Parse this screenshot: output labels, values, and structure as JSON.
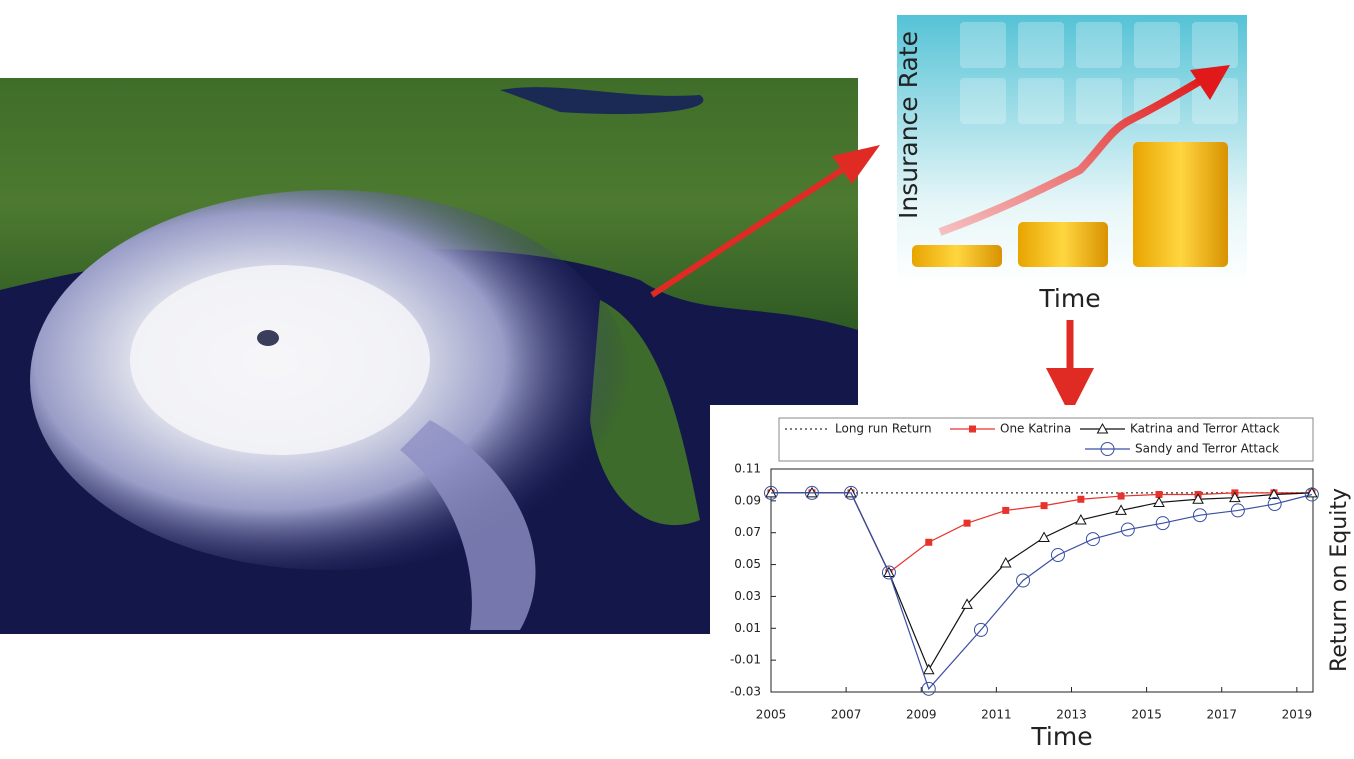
{
  "chart_data": {
    "type": "line",
    "x_label": "Time",
    "y_label": "Return on Equity",
    "xlim": [
      2005,
      2019.43
    ],
    "xticks": [
      2005,
      2007,
      2009,
      2011,
      2013,
      2015,
      2017,
      2019
    ],
    "ylim": [
      -0.03,
      0.11
    ],
    "yticks": [
      0.11,
      0.09,
      0.07,
      0.05,
      0.03,
      0.01,
      -0.01,
      -0.03
    ],
    "series": [
      {
        "name": "Long run Return",
        "color": "#333333",
        "dash": true,
        "marker": "none",
        "x": [
          2005,
          2019.43
        ],
        "values": [
          0.095,
          0.095
        ]
      },
      {
        "name": "One Katrina",
        "color": "#e8322c",
        "marker": "square",
        "x": [
          2005,
          2006.09,
          2007.13,
          2008.14,
          2009.2,
          2010.22,
          2011.25,
          2012.27,
          2013.25,
          2014.32,
          2015.33,
          2016.37,
          2017.35,
          2018.39,
          2019.4
        ],
        "values": [
          0.095,
          0.095,
          0.095,
          0.045,
          0.064,
          0.076,
          0.084,
          0.087,
          0.091,
          0.093,
          0.094,
          0.094,
          0.095,
          0.095,
          0.095
        ]
      },
      {
        "name": "Katrina and Terror Attack",
        "color": "#111111",
        "marker": "triangle",
        "x": [
          2005,
          2006.09,
          2007.13,
          2008.14,
          2009.2,
          2010.22,
          2011.25,
          2012.27,
          2013.25,
          2014.32,
          2015.33,
          2016.37,
          2017.35,
          2018.39,
          2019.4
        ],
        "values": [
          0.095,
          0.095,
          0.095,
          0.045,
          -0.016,
          0.025,
          0.051,
          0.067,
          0.078,
          0.084,
          0.089,
          0.091,
          0.092,
          0.094,
          0.095
        ]
      },
      {
        "name": "Sandy and Terror Attack",
        "color": "#3a4fa3",
        "marker": "circle",
        "x": [
          2005,
          2006.09,
          2007.13,
          2008.14,
          2009.2,
          2010.59,
          2011.71,
          2012.64,
          2013.57,
          2014.5,
          2015.43,
          2016.42,
          2017.43,
          2018.41,
          2019.4
        ],
        "values": [
          0.095,
          0.095,
          0.095,
          0.045,
          -0.028,
          0.009,
          0.04,
          0.056,
          0.066,
          0.072,
          0.076,
          0.081,
          0.084,
          0.088,
          0.094
        ]
      }
    ]
  },
  "illustration": {
    "y_label": "Insurance Rate",
    "x_label": "Time"
  }
}
